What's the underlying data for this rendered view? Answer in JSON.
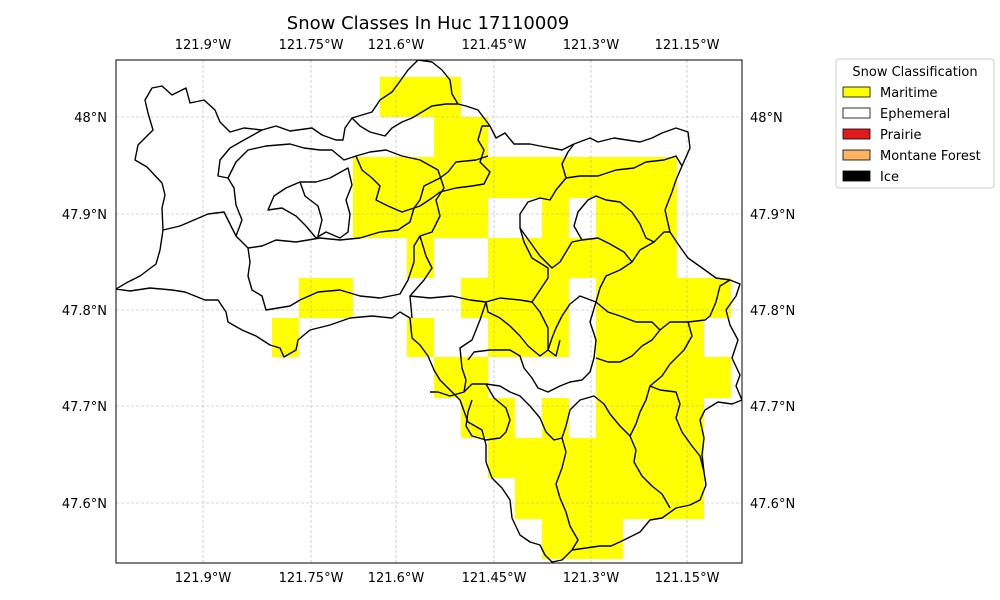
{
  "map": {
    "title": "Snow Classes In Huc 17110009",
    "lon_ticks": [
      "121.9°W",
      "121.75°W",
      "121.6°W",
      "121.45°W",
      "121.3°W",
      "121.15°W"
    ],
    "lat_ticks": [
      "48°N",
      "47.9°N",
      "47.8°N",
      "47.7°N",
      "47.6°N"
    ],
    "grid": true,
    "legend": {
      "title": "Snow Classification",
      "placement": "outside-right-top",
      "items": [
        {
          "label": "Maritime",
          "color": "#ffff00"
        },
        {
          "label": "Ephemeral",
          "color": "#ffffff"
        },
        {
          "label": "Prairie",
          "color": "#e31a1c"
        },
        {
          "label": "Montane Forest",
          "color": "#fdb462"
        },
        {
          "label": "Ice",
          "color": "#000000"
        }
      ]
    },
    "colors": {
      "maritime": "#ffff00",
      "boundary": "#000000",
      "grid": "#b0b0b0"
    }
  }
}
